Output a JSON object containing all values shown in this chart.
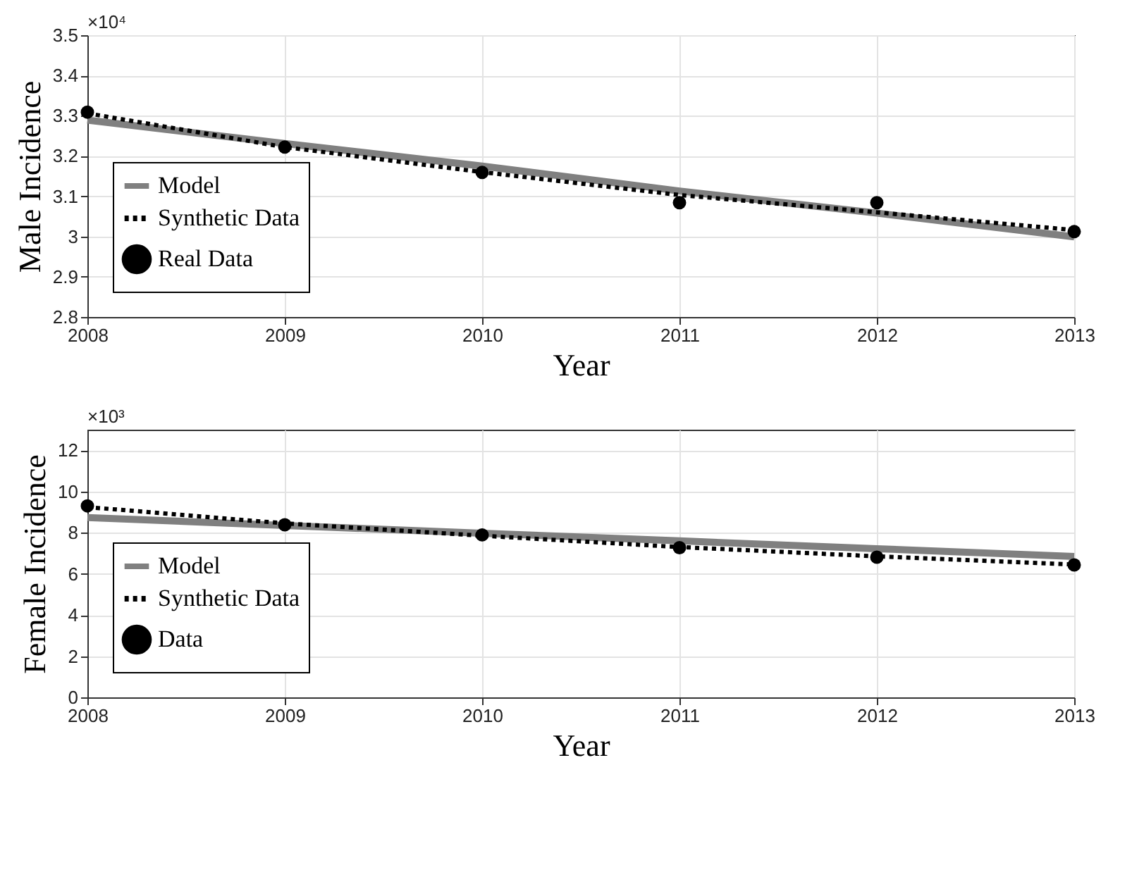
{
  "chart_data": [
    {
      "type": "line",
      "xlabel": "Year",
      "ylabel": "Male Incidence",
      "annotations": [
        "×10⁴"
      ],
      "x": [
        2008,
        2009,
        2010,
        2011,
        2012,
        2013
      ],
      "series": [
        {
          "name": "Model",
          "color": "#808080",
          "line_style": "solid",
          "values": [
            3.289,
            3.231,
            3.175,
            3.113,
            3.058,
            2.999
          ]
        },
        {
          "name": "Synthetic Data",
          "color": "#000000",
          "line_style": "dotted",
          "values": [
            3.306,
            3.222,
            3.16,
            3.103,
            3.06,
            3.016
          ]
        },
        {
          "name": "Real Data",
          "color": "#000000",
          "type": "scatter",
          "marker": "circle",
          "values": [
            3.309,
            3.222,
            3.159,
            3.084,
            3.084,
            3.012
          ]
        }
      ],
      "xlim": [
        2008,
        2013
      ],
      "xticks": [
        2008,
        2009,
        2010,
        2011,
        2012,
        2013
      ],
      "ylim": [
        2.8,
        3.5
      ],
      "yticks": [
        2.8,
        2.9,
        3,
        3.1,
        3.2,
        3.3,
        3.4,
        3.5
      ],
      "grid": true,
      "legend": "bottom left"
    },
    {
      "type": "line",
      "xlabel": "Year",
      "ylabel": "Female Incidence",
      "annotations": [
        "×10³"
      ],
      "x": [
        2008,
        2009,
        2010,
        2011,
        2012,
        2013
      ],
      "series": [
        {
          "name": "Model",
          "color": "#808080",
          "line_style": "solid",
          "values": [
            8.73,
            8.35,
            7.97,
            7.6,
            7.22,
            6.84
          ]
        },
        {
          "name": "Synthetic Data",
          "color": "#000000",
          "line_style": "dotted",
          "values": [
            9.24,
            8.45,
            7.85,
            7.3,
            6.85,
            6.45
          ]
        },
        {
          "name": "Data",
          "color": "#000000",
          "type": "scatter",
          "marker": "circle",
          "values": [
            9.3,
            8.38,
            7.89,
            7.27,
            6.81,
            6.43
          ]
        }
      ],
      "xlim": [
        2008,
        2013
      ],
      "xticks": [
        2008,
        2009,
        2010,
        2011,
        2012,
        2013
      ],
      "ylim": [
        0,
        13
      ],
      "yticks": [
        0,
        2,
        4,
        6,
        8,
        10,
        12
      ],
      "grid": true,
      "legend": "bottom left"
    }
  ]
}
